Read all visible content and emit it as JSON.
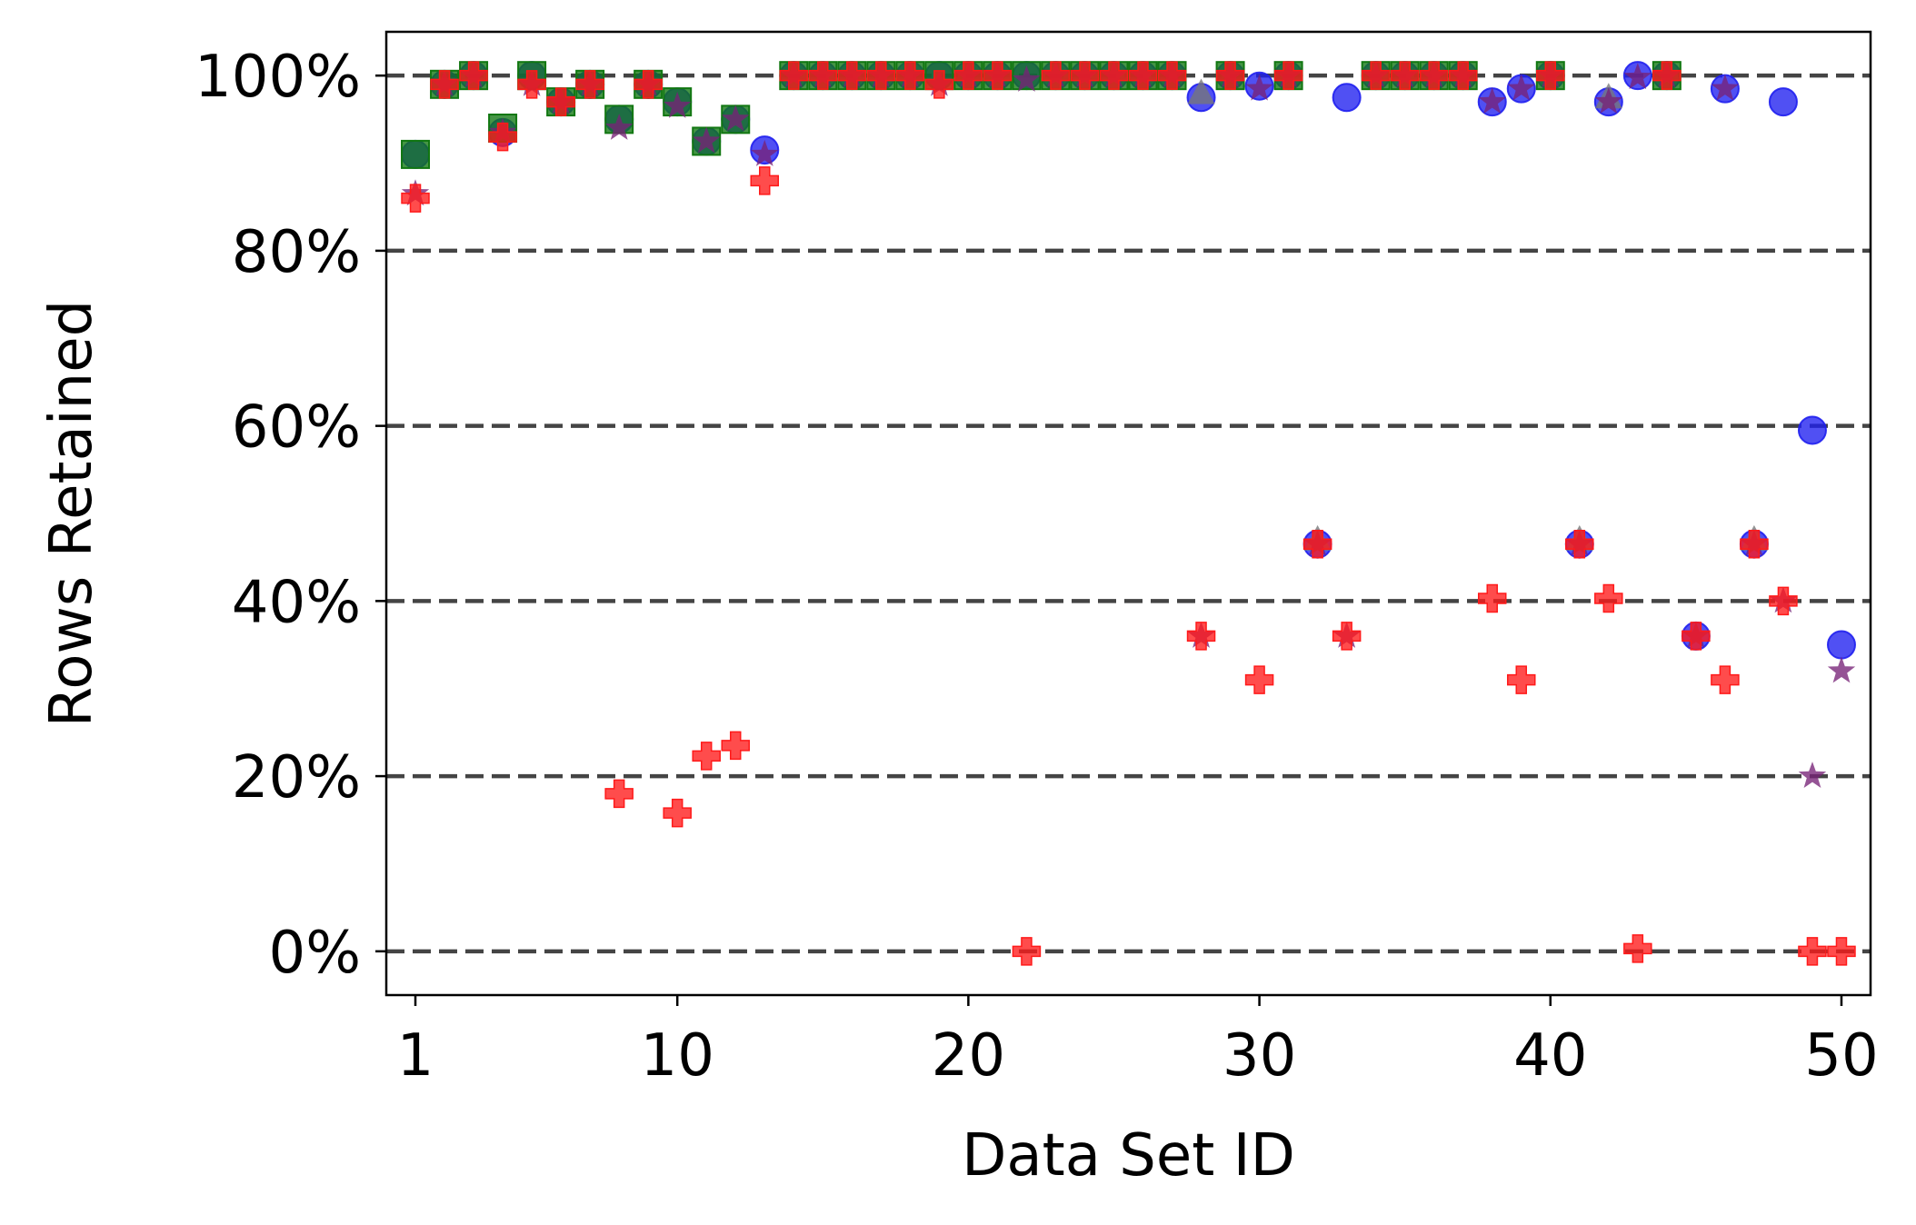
{
  "chart_data": {
    "type": "scatter",
    "title": "",
    "xlabel": "Data Set ID",
    "ylabel": "Rows Retained",
    "xlim": [
      0,
      51
    ],
    "ylim": [
      -0.05,
      1.05
    ],
    "x_ticks": [
      1,
      10,
      20,
      30,
      40,
      50
    ],
    "y_ticks": [
      {
        "value": 0,
        "label": "0%"
      },
      {
        "value": 0.2,
        "label": "20%"
      },
      {
        "value": 0.4,
        "label": "40%"
      },
      {
        "value": 0.6,
        "label": "60%"
      },
      {
        "value": 0.8,
        "label": "80%"
      },
      {
        "value": 1.0,
        "label": "100%"
      }
    ],
    "grid": "horizontal dashed",
    "legend": "none",
    "colors": {
      "blue": "#1f1fef",
      "gray": "#777777",
      "green": "#117711",
      "purple": "#772277",
      "red": "#ff1a1a",
      "grid": "#444444"
    },
    "series": [
      {
        "marker": "circle",
        "color": "blue",
        "points": [
          [
            1,
            0.91
          ],
          [
            2,
            0.99
          ],
          [
            3,
            1.0
          ],
          [
            4,
            0.935
          ],
          [
            5,
            1.0
          ],
          [
            6,
            0.97
          ],
          [
            7,
            0.99
          ],
          [
            8,
            0.95
          ],
          [
            9,
            0.99
          ],
          [
            10,
            0.97
          ],
          [
            11,
            0.925
          ],
          [
            12,
            0.95
          ],
          [
            13,
            0.915
          ],
          [
            14,
            1.0
          ],
          [
            15,
            1.0
          ],
          [
            16,
            1.0
          ],
          [
            17,
            1.0
          ],
          [
            18,
            1.0
          ],
          [
            19,
            1.0
          ],
          [
            20,
            1.0
          ],
          [
            21,
            1.0
          ],
          [
            22,
            1.0
          ],
          [
            23,
            1.0
          ],
          [
            24,
            1.0
          ],
          [
            25,
            1.0
          ],
          [
            26,
            1.0
          ],
          [
            27,
            1.0
          ],
          [
            28,
            0.975
          ],
          [
            29,
            1.0
          ],
          [
            30,
            0.988
          ],
          [
            31,
            1.0
          ],
          [
            32,
            0.465
          ],
          [
            33,
            0.975
          ],
          [
            34,
            1.0
          ],
          [
            35,
            1.0
          ],
          [
            36,
            1.0
          ],
          [
            37,
            1.0
          ],
          [
            38,
            0.97
          ],
          [
            39,
            0.985
          ],
          [
            40,
            1.0
          ],
          [
            41,
            0.465
          ],
          [
            42,
            0.97
          ],
          [
            43,
            1.0
          ],
          [
            44,
            1.0
          ],
          [
            45,
            0.36
          ],
          [
            46,
            0.985
          ],
          [
            47,
            0.465
          ],
          [
            48,
            0.97
          ],
          [
            49,
            0.595
          ],
          [
            50,
            0.35
          ]
        ]
      },
      {
        "marker": "triangle",
        "color": "gray",
        "points": [
          [
            28,
            0.98
          ],
          [
            32,
            0.47
          ],
          [
            41,
            0.47
          ],
          [
            42,
            0.975
          ],
          [
            47,
            0.47
          ]
        ]
      },
      {
        "marker": "square",
        "color": "green",
        "points": [
          [
            1,
            0.91
          ],
          [
            2,
            0.99
          ],
          [
            3,
            1.0
          ],
          [
            4,
            0.94
          ],
          [
            5,
            1.0
          ],
          [
            6,
            0.97
          ],
          [
            7,
            0.99
          ],
          [
            8,
            0.95
          ],
          [
            9,
            0.99
          ],
          [
            10,
            0.97
          ],
          [
            11,
            0.925
          ],
          [
            12,
            0.95
          ],
          [
            14,
            1.0
          ],
          [
            15,
            1.0
          ],
          [
            16,
            1.0
          ],
          [
            17,
            1.0
          ],
          [
            18,
            1.0
          ],
          [
            19,
            1.0
          ],
          [
            20,
            1.0
          ],
          [
            21,
            1.0
          ],
          [
            22,
            1.0
          ],
          [
            23,
            1.0
          ],
          [
            24,
            1.0
          ],
          [
            25,
            1.0
          ],
          [
            26,
            1.0
          ],
          [
            27,
            1.0
          ],
          [
            29,
            1.0
          ],
          [
            31,
            1.0
          ],
          [
            34,
            1.0
          ],
          [
            35,
            1.0
          ],
          [
            36,
            1.0
          ],
          [
            37,
            1.0
          ],
          [
            40,
            1.0
          ],
          [
            44,
            1.0
          ]
        ]
      },
      {
        "marker": "star",
        "color": "purple",
        "points": [
          [
            1,
            0.865
          ],
          [
            2,
            0.99
          ],
          [
            3,
            1.0
          ],
          [
            4,
            0.935
          ],
          [
            5,
            0.99
          ],
          [
            6,
            0.97
          ],
          [
            7,
            0.99
          ],
          [
            8,
            0.94
          ],
          [
            9,
            0.99
          ],
          [
            10,
            0.965
          ],
          [
            11,
            0.925
          ],
          [
            12,
            0.95
          ],
          [
            13,
            0.91
          ],
          [
            14,
            1.0
          ],
          [
            15,
            1.0
          ],
          [
            16,
            1.0
          ],
          [
            17,
            1.0
          ],
          [
            18,
            1.0
          ],
          [
            19,
            0.99
          ],
          [
            20,
            1.0
          ],
          [
            21,
            1.0
          ],
          [
            22,
            0.995
          ],
          [
            23,
            1.0
          ],
          [
            24,
            1.0
          ],
          [
            25,
            1.0
          ],
          [
            26,
            1.0
          ],
          [
            27,
            1.0
          ],
          [
            28,
            0.36
          ],
          [
            29,
            1.0
          ],
          [
            30,
            0.985
          ],
          [
            31,
            1.0
          ],
          [
            32,
            0.465
          ],
          [
            33,
            0.36
          ],
          [
            34,
            1.0
          ],
          [
            35,
            1.0
          ],
          [
            36,
            1.0
          ],
          [
            37,
            1.0
          ],
          [
            38,
            0.97
          ],
          [
            39,
            0.985
          ],
          [
            40,
            1.0
          ],
          [
            41,
            0.465
          ],
          [
            42,
            0.97
          ],
          [
            43,
            0.998
          ],
          [
            44,
            1.0
          ],
          [
            45,
            0.36
          ],
          [
            46,
            0.985
          ],
          [
            47,
            0.465
          ],
          [
            48,
            0.4
          ],
          [
            49,
            0.2
          ],
          [
            50,
            0.32
          ]
        ]
      },
      {
        "marker": "plus",
        "color": "red",
        "points": [
          [
            1,
            0.86
          ],
          [
            2,
            0.99
          ],
          [
            3,
            1.0
          ],
          [
            4,
            0.93
          ],
          [
            5,
            0.99
          ],
          [
            6,
            0.97
          ],
          [
            7,
            0.99
          ],
          [
            8,
            0.18
          ],
          [
            9,
            0.99
          ],
          [
            10,
            0.158
          ],
          [
            11,
            0.223
          ],
          [
            12,
            0.235
          ],
          [
            13,
            0.88
          ],
          [
            14,
            1.0
          ],
          [
            15,
            1.0
          ],
          [
            16,
            1.0
          ],
          [
            17,
            1.0
          ],
          [
            18,
            1.0
          ],
          [
            19,
            0.99
          ],
          [
            20,
            1.0
          ],
          [
            21,
            1.0
          ],
          [
            22,
            0.0
          ],
          [
            23,
            1.0
          ],
          [
            24,
            1.0
          ],
          [
            25,
            1.0
          ],
          [
            26,
            1.0
          ],
          [
            27,
            1.0
          ],
          [
            28,
            0.36
          ],
          [
            29,
            1.0
          ],
          [
            30,
            0.31
          ],
          [
            31,
            1.0
          ],
          [
            32,
            0.465
          ],
          [
            33,
            0.36
          ],
          [
            34,
            1.0
          ],
          [
            35,
            1.0
          ],
          [
            36,
            1.0
          ],
          [
            37,
            1.0
          ],
          [
            38,
            0.403
          ],
          [
            39,
            0.31
          ],
          [
            40,
            1.0
          ],
          [
            41,
            0.465
          ],
          [
            42,
            0.403
          ],
          [
            43,
            0.003
          ],
          [
            44,
            1.0
          ],
          [
            45,
            0.36
          ],
          [
            46,
            0.31
          ],
          [
            47,
            0.465
          ],
          [
            48,
            0.4
          ],
          [
            49,
            0.0
          ],
          [
            50,
            0.0
          ]
        ]
      }
    ]
  }
}
